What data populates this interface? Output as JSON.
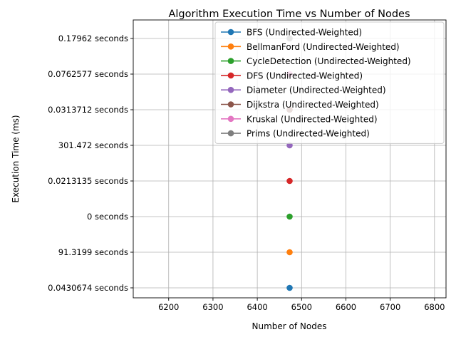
{
  "chart_data": {
    "type": "line",
    "title": "Algorithm Execution Time vs Number of Nodes",
    "xlabel": "Number of Nodes",
    "ylabel": "Execution Time (ms)",
    "xlim": [
      6120,
      6826
    ],
    "x_ticks": [
      6200,
      6300,
      6400,
      6500,
      6600,
      6700,
      6800
    ],
    "y_categories": [
      "0.0430674 seconds",
      "91.3199 seconds",
      "0 seconds",
      "0.0213135 seconds",
      "301.472 seconds",
      "0.0313712 seconds",
      "0.0762577 seconds",
      "0.17962 seconds"
    ],
    "grid": true,
    "legend_position": "upper-right",
    "series": [
      {
        "name": "BFS (Undirected-Weighted)",
        "color": "#1f77b4",
        "x": [
          6473
        ],
        "y": [
          "0.0430674 seconds"
        ]
      },
      {
        "name": "BellmanFord (Undirected-Weighted)",
        "color": "#ff7f0e",
        "x": [
          6473
        ],
        "y": [
          "91.3199 seconds"
        ]
      },
      {
        "name": "CycleDetection (Undirected-Weighted)",
        "color": "#2ca02c",
        "x": [
          6473
        ],
        "y": [
          "0 seconds"
        ]
      },
      {
        "name": "DFS (Undirected-Weighted)",
        "color": "#d62728",
        "x": [
          6473
        ],
        "y": [
          "0.0213135 seconds"
        ]
      },
      {
        "name": "Diameter (Undirected-Weighted)",
        "color": "#9467bd",
        "x": [
          6473
        ],
        "y": [
          "301.472 seconds"
        ]
      },
      {
        "name": "Dijkstra (Undirected-Weighted)",
        "color": "#8c564b",
        "x": [
          6473
        ],
        "y": [
          "0.0313712 seconds"
        ]
      },
      {
        "name": "Kruskal (Undirected-Weighted)",
        "color": "#e377c2",
        "x": [
          6473
        ],
        "y": [
          "0.0762577 seconds"
        ]
      },
      {
        "name": "Prims (Undirected-Weighted)",
        "color": "#7f7f7f",
        "x": [
          6473
        ],
        "y": [
          "0.17962 seconds"
        ]
      }
    ]
  }
}
